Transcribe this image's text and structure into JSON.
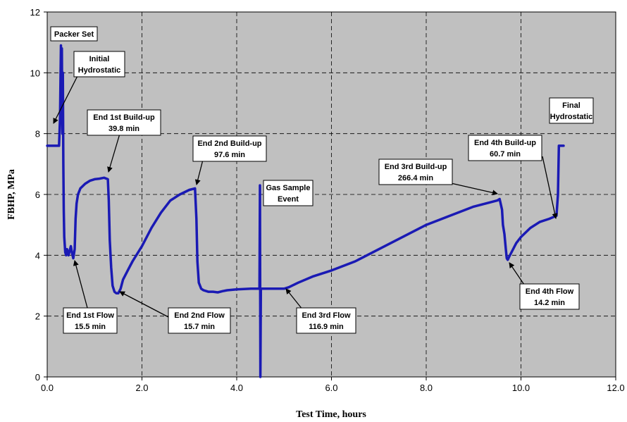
{
  "chart_data": {
    "type": "line",
    "xlabel": "Test Time, hours",
    "ylabel": "FBHP, MPa",
    "xlim": [
      0,
      12
    ],
    "ylim": [
      0,
      12
    ],
    "x_ticks": [
      "0.0",
      "2.0",
      "4.0",
      "6.0",
      "8.0",
      "10.0",
      "12.0"
    ],
    "y_ticks": [
      "0",
      "2",
      "4",
      "6",
      "8",
      "10",
      "12"
    ],
    "grid": true,
    "colors": {
      "plot_bg": "#c0c0c0",
      "line": "#1a1ab4",
      "grid": "#000000"
    },
    "series": [
      {
        "x": [
          0.0,
          0.25,
          0.27,
          0.29,
          0.3,
          0.31,
          0.32,
          0.33,
          0.34,
          0.35,
          0.36,
          0.38,
          0.4,
          0.42,
          0.45,
          0.5,
          0.52,
          0.55,
          0.58,
          0.6,
          0.62,
          0.65,
          0.7,
          0.8,
          0.9,
          1.0,
          1.1,
          1.2,
          1.28,
          1.3,
          1.32,
          1.35,
          1.38,
          1.42,
          1.46,
          1.5,
          1.55,
          1.6,
          1.7,
          1.8,
          2.0,
          2.2,
          2.4,
          2.6,
          2.8,
          3.0,
          3.12,
          3.15,
          3.17,
          3.2,
          3.25,
          3.3,
          3.4,
          3.5,
          3.6,
          3.7,
          3.8,
          4.0,
          4.3,
          4.48,
          4.49,
          4.5,
          4.51,
          4.52,
          4.6,
          4.8,
          5.0,
          5.1,
          5.3,
          5.6,
          6.0,
          6.5,
          7.0,
          7.5,
          8.0,
          8.5,
          9.0,
          9.5,
          9.55,
          9.6,
          9.62,
          9.65,
          9.68,
          9.7,
          9.72,
          9.75,
          9.8,
          9.9,
          10.0,
          10.2,
          10.4,
          10.6,
          10.75,
          10.78,
          10.8,
          10.82,
          10.9
        ],
        "y": [
          7.6,
          7.6,
          8.5,
          10.9,
          9.0,
          10.8,
          8.0,
          10.0,
          7.0,
          5.5,
          4.6,
          4.1,
          4.0,
          4.2,
          4.0,
          4.3,
          4.1,
          3.9,
          4.2,
          5.2,
          5.7,
          6.0,
          6.2,
          6.35,
          6.45,
          6.5,
          6.52,
          6.55,
          6.5,
          5.8,
          4.5,
          3.6,
          3.0,
          2.8,
          2.75,
          2.75,
          2.9,
          3.2,
          3.5,
          3.8,
          4.3,
          4.9,
          5.4,
          5.8,
          6.0,
          6.15,
          6.2,
          5.2,
          3.8,
          3.1,
          2.9,
          2.85,
          2.8,
          2.8,
          2.78,
          2.82,
          2.85,
          2.88,
          2.9,
          2.9,
          6.3,
          0.0,
          2.9,
          2.9,
          2.9,
          2.9,
          2.9,
          2.95,
          3.1,
          3.3,
          3.5,
          3.8,
          4.2,
          4.6,
          5.0,
          5.3,
          5.6,
          5.8,
          5.85,
          5.5,
          5.0,
          4.7,
          4.2,
          3.9,
          3.85,
          3.95,
          4.1,
          4.4,
          4.6,
          4.9,
          5.1,
          5.2,
          5.3,
          6.0,
          7.6,
          7.6,
          7.6
        ]
      }
    ],
    "annotations": [
      {
        "id": "packer-set",
        "lines": [
          "Packer Set"
        ]
      },
      {
        "id": "initial-hydrostatic",
        "lines": [
          "Initial",
          "Hydrostatic"
        ]
      },
      {
        "id": "end-1st-buildup",
        "lines": [
          "End 1st Build-up",
          "39.8 min"
        ]
      },
      {
        "id": "end-2nd-buildup",
        "lines": [
          "End 2nd Build-up",
          "97.6 min"
        ]
      },
      {
        "id": "gas-sample-event",
        "lines": [
          "Gas Sample",
          "Event"
        ]
      },
      {
        "id": "end-3rd-buildup",
        "lines": [
          "End 3rd Build-up",
          "266.4 min"
        ]
      },
      {
        "id": "end-4th-buildup",
        "lines": [
          "End 4th Build-up",
          "60.7 min"
        ]
      },
      {
        "id": "final-hydrostatic",
        "lines": [
          "Final",
          "Hydrostatic"
        ]
      },
      {
        "id": "end-1st-flow",
        "lines": [
          "End 1st Flow",
          "15.5 min"
        ]
      },
      {
        "id": "end-2nd-flow",
        "lines": [
          "End 2nd Flow",
          "15.7 min"
        ]
      },
      {
        "id": "end-3rd-flow",
        "lines": [
          "End 3rd Flow",
          "116.9 min"
        ]
      },
      {
        "id": "end-4th-flow",
        "lines": [
          "End 4th Flow",
          "14.2 min"
        ]
      }
    ]
  }
}
